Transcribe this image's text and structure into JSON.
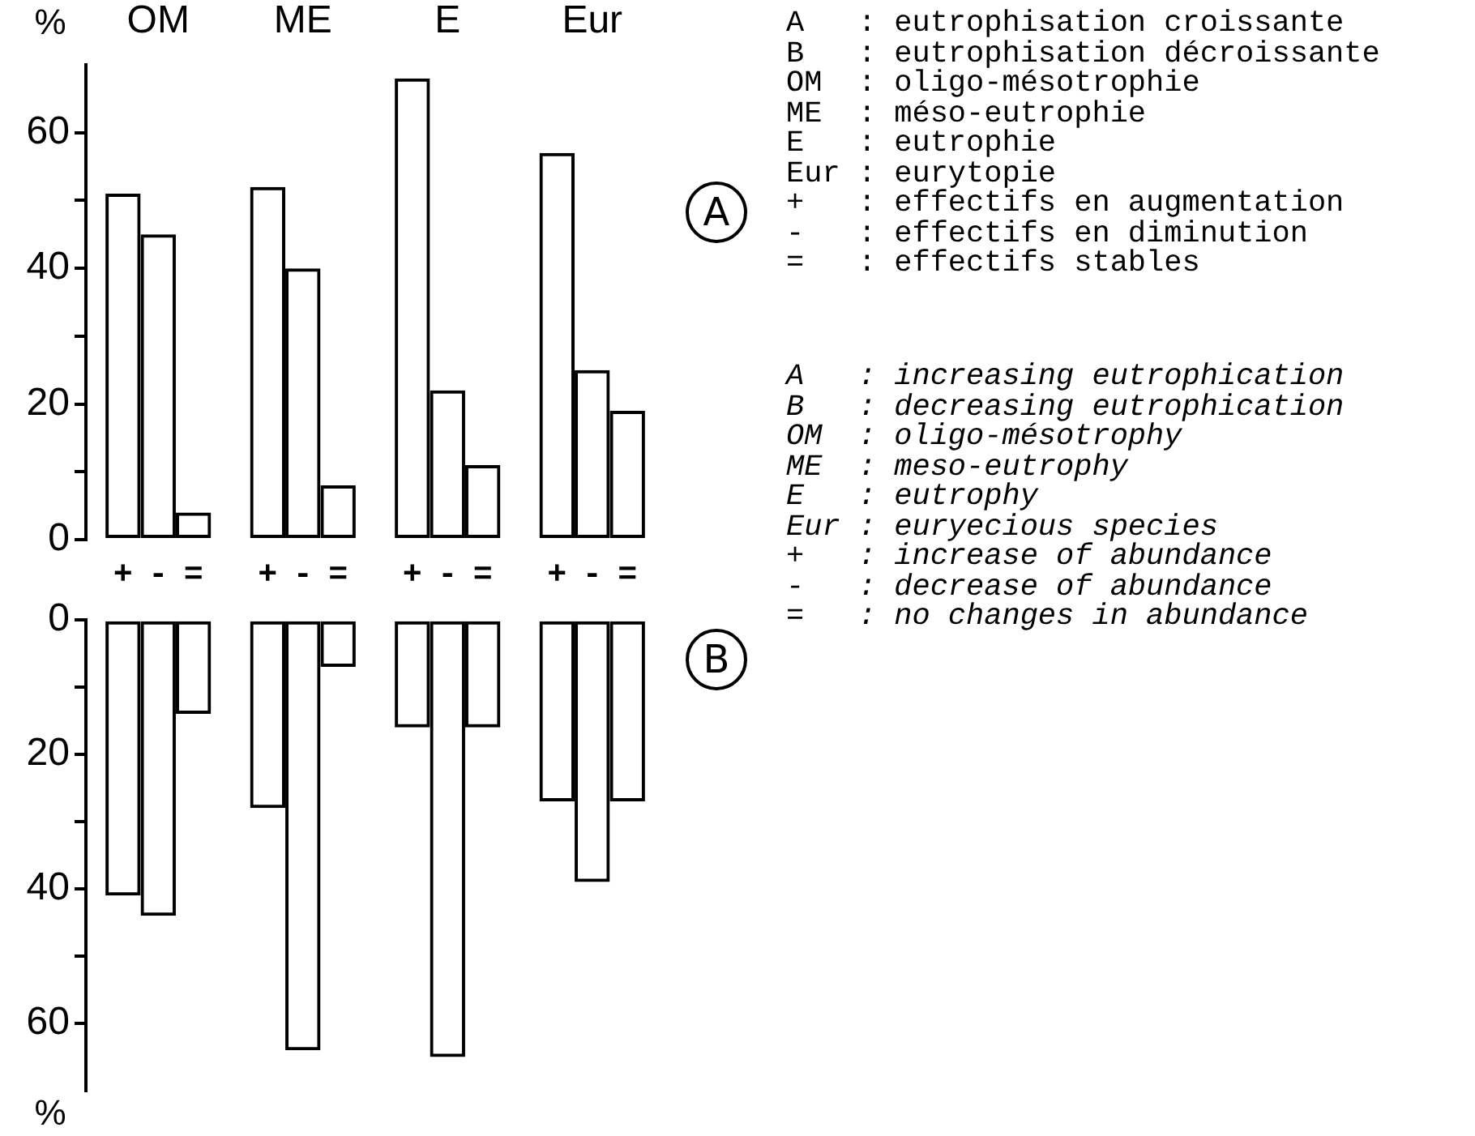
{
  "chart_data": [
    {
      "type": "bar",
      "categories": [
        "OM",
        "ME",
        "E",
        "Eur"
      ],
      "ylabel": "%",
      "series": [
        {
          "name": "+",
          "color": "#000000",
          "values": [
            51,
            52,
            68,
            57
          ]
        },
        {
          "name": "-",
          "color": "#000000",
          "values": [
            45,
            40,
            22,
            25
          ]
        },
        {
          "name": "=",
          "color": "#000000",
          "values": [
            4,
            8,
            11,
            19
          ]
        }
      ],
      "ylim": [
        0,
        70
      ],
      "yticks": [
        0,
        {
          "value": 10,
          "label": null
        },
        20,
        {
          "value": 30,
          "label": null
        },
        40,
        {
          "value": 50,
          "label": null
        },
        60
      ],
      "grid": false,
      "legend": "bottom",
      "annotations": [
        "A",
        "A   : eutrophisation croissante",
        "B   : eutrophisation décroissante",
        "OM  : oligo-mésotrophie",
        "ME  : méso-eutrophie",
        "E   : eutrophie",
        "Eur : eurytopie",
        "+   : effectifs en augmentation",
        "-   : effectifs en diminution",
        "=   : effectifs stables"
      ]
    },
    {
      "type": "bar",
      "categories": [
        null,
        null,
        null,
        null
      ],
      "ylabel": "%",
      "series": [
        {
          "color": "#000000",
          "values": [
            41,
            28,
            16,
            27
          ]
        },
        {
          "color": "#000000",
          "values": [
            44,
            64,
            65,
            39
          ]
        },
        {
          "color": "#000000",
          "values": [
            14,
            7,
            16,
            27
          ]
        }
      ],
      "ylim": [
        70,
        0
      ],
      "yticks": [
        0,
        {
          "value": 10,
          "label": null
        },
        20,
        {
          "value": 30,
          "label": null
        },
        40,
        {
          "value": 50,
          "label": null
        },
        60
      ],
      "grid": false,
      "legend": false,
      "tick_labels": "y",
      "annotations": [
        "B",
        "A   : increasing eutrophication",
        "B   : decreasing eutrophication",
        "OM  : oligo-mésotrophy",
        "ME  : meso-eutrophy",
        "E   : eutrophy",
        "Eur : euryecious species",
        "+   : increase of abundance",
        "-   : decrease of abundance",
        "=   : no changes in abundance"
      ]
    }
  ]
}
